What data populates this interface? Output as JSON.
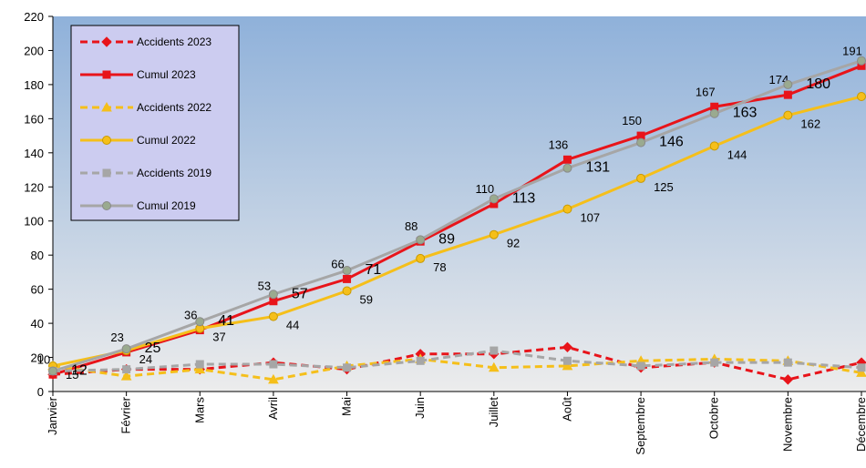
{
  "chart_data": {
    "type": "line",
    "categories": [
      "Janvier",
      "Février",
      "Mars",
      "Avril",
      "Mai",
      "Juin",
      "Juillet",
      "Août",
      "Septembre",
      "Octobre",
      "Novembre",
      "Décembre"
    ],
    "series": [
      {
        "name": "Accidents 2023",
        "color": "#e8141a",
        "dash": true,
        "marker": "diamond",
        "labels": false,
        "values": [
          10,
          13,
          13,
          17,
          13,
          22,
          22,
          26,
          14,
          17,
          7,
          17
        ]
      },
      {
        "name": "Cumul 2023",
        "color": "#e8141a",
        "dash": false,
        "marker": "square",
        "labels": true,
        "values": [
          10,
          23,
          36,
          53,
          66,
          88,
          110,
          136,
          150,
          167,
          174,
          191
        ]
      },
      {
        "name": "Accidents 2022",
        "color": "#f5bf1a",
        "dash": true,
        "marker": "triangle",
        "labels": false,
        "values": [
          15,
          9,
          13,
          7,
          15,
          19,
          14,
          15,
          18,
          19,
          18,
          11
        ]
      },
      {
        "name": "Cumul 2022",
        "color": "#f5bf1a",
        "dash": false,
        "marker": "circle",
        "labels": true,
        "values": [
          15,
          24,
          37,
          44,
          59,
          78,
          92,
          107,
          125,
          144,
          162,
          173
        ]
      },
      {
        "name": "Accidents 2019",
        "color": "#a6a6a6",
        "dash": true,
        "marker": "square",
        "labels": false,
        "values": [
          12,
          13,
          16,
          16,
          14,
          18,
          24,
          18,
          15,
          17,
          17,
          14
        ]
      },
      {
        "name": "Cumul 2019",
        "color": "#a6a6a6",
        "dash": false,
        "marker": "circle",
        "labels": true,
        "values": [
          12,
          25,
          41,
          57,
          71,
          89,
          113,
          131,
          146,
          163,
          180,
          194
        ]
      }
    ],
    "ylim": [
      0,
      220
    ],
    "yticks": [
      0,
      20,
      40,
      60,
      80,
      100,
      120,
      140,
      160,
      180,
      200,
      220
    ],
    "legend": "top-left"
  }
}
